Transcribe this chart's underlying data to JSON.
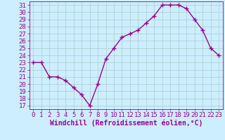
{
  "x": [
    0,
    1,
    2,
    3,
    4,
    5,
    6,
    7,
    8,
    9,
    10,
    11,
    12,
    13,
    14,
    15,
    16,
    17,
    18,
    19,
    20,
    21,
    22,
    23
  ],
  "y": [
    23.0,
    23.0,
    21.0,
    21.0,
    20.5,
    19.5,
    18.5,
    17.0,
    20.0,
    23.5,
    25.0,
    26.5,
    27.0,
    27.5,
    28.5,
    29.5,
    31.0,
    31.0,
    31.0,
    30.5,
    29.0,
    27.5,
    25.0,
    24.0
  ],
  "line_color": "#990099",
  "marker": "+",
  "bg_color": "#cceeff",
  "grid_color": "#aacccc",
  "xlabel": "Windchill (Refroidissement éolien,°C)",
  "ylabel_ticks": [
    17,
    18,
    19,
    20,
    21,
    22,
    23,
    24,
    25,
    26,
    27,
    28,
    29,
    30,
    31
  ],
  "xlim": [
    -0.5,
    23.5
  ],
  "ylim": [
    16.5,
    31.5
  ],
  "xlabel_fontsize": 7,
  "tick_fontsize": 6.5,
  "line_width": 1.0,
  "marker_size": 4
}
